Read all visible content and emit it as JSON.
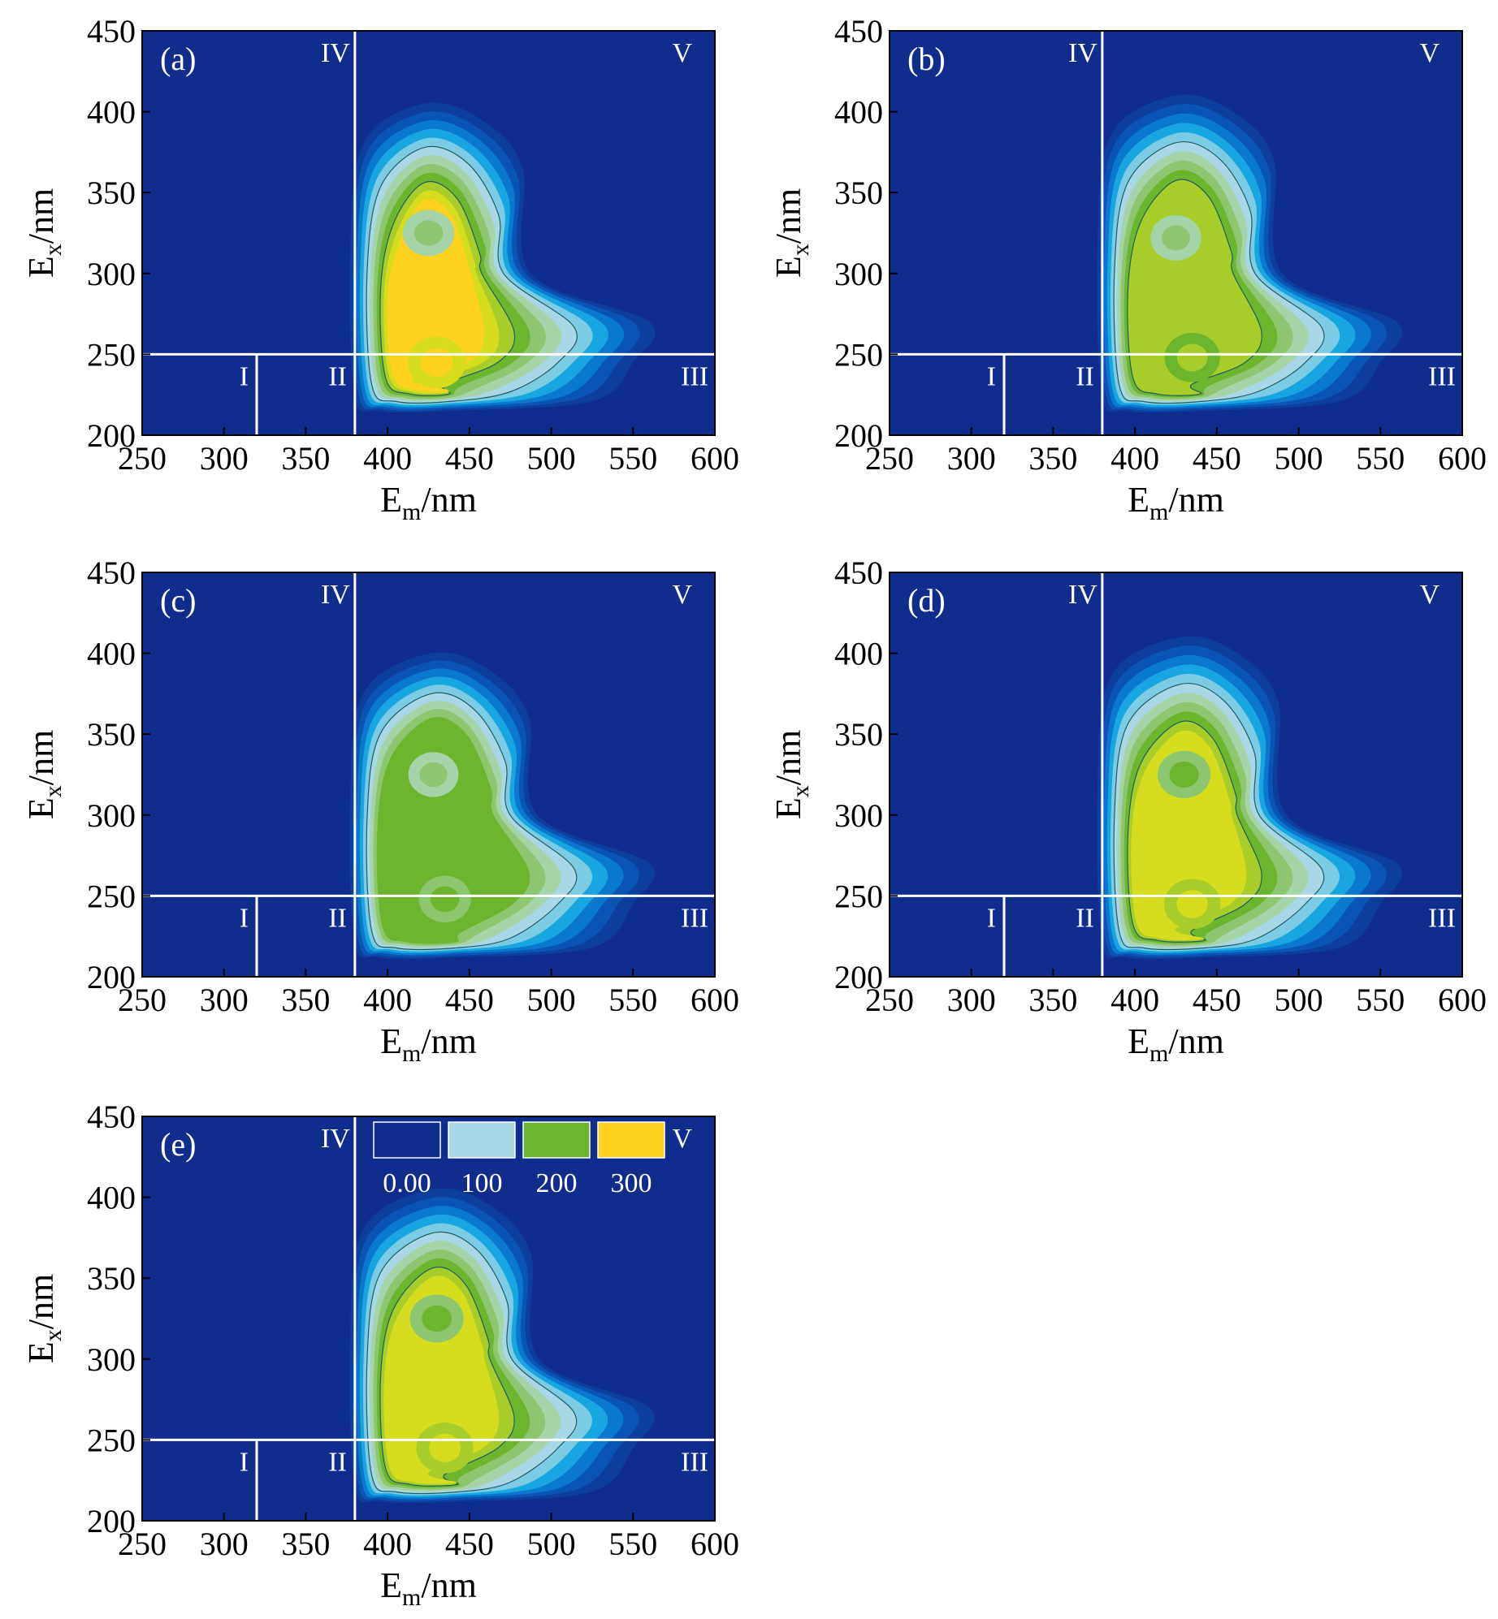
{
  "figure": {
    "panels": [
      {
        "label": "(a)"
      },
      {
        "label": "(b)"
      },
      {
        "label": "(c)"
      },
      {
        "label": "(d)"
      },
      {
        "label": "(e)"
      }
    ],
    "region_labels": [
      "I",
      "II",
      "III",
      "IV",
      "V"
    ],
    "colorbar": {
      "labels": [
        "0.00",
        "100",
        "200",
        "300"
      ],
      "colors": [
        "#0f2d8c",
        "#a8d8e6",
        "#6cb52f",
        "#ffd21f"
      ]
    }
  },
  "chart_data": [
    {
      "type": "heatmap",
      "panel": "(a)",
      "xlabel": "Em/nm",
      "ylabel": "Ex/nm",
      "xlim": [
        250,
        600
      ],
      "ylim": [
        200,
        450
      ],
      "xticks": [
        250,
        300,
        350,
        400,
        450,
        500,
        550,
        600
      ],
      "yticks": [
        200,
        250,
        300,
        350,
        400,
        450
      ],
      "region_boundaries": {
        "ex": 250,
        "em": [
          320,
          380
        ]
      },
      "peaks": [
        {
          "em": 425,
          "ex": 325,
          "intensity": 230
        },
        {
          "em": 430,
          "ex": 245,
          "intensity": 320
        }
      ],
      "extent": {
        "em": [
          380,
          560
        ],
        "ex": [
          215,
          405
        ]
      }
    },
    {
      "type": "heatmap",
      "panel": "(b)",
      "xlabel": "Em/nm",
      "ylabel": "Ex/nm",
      "xlim": [
        250,
        600
      ],
      "ylim": [
        200,
        450
      ],
      "xticks": [
        250,
        300,
        350,
        400,
        450,
        500,
        550,
        600
      ],
      "yticks": [
        200,
        250,
        300,
        350,
        400,
        450
      ],
      "region_boundaries": {
        "ex": 250,
        "em": [
          320,
          380
        ]
      },
      "peaks": [
        {
          "em": 425,
          "ex": 322,
          "intensity": 220
        },
        {
          "em": 435,
          "ex": 248,
          "intensity": 285
        }
      ],
      "extent": {
        "em": [
          380,
          560
        ],
        "ex": [
          215,
          410
        ]
      }
    },
    {
      "type": "heatmap",
      "panel": "(c)",
      "xlabel": "Em/nm",
      "ylabel": "Ex/nm",
      "xlim": [
        250,
        600
      ],
      "ylim": [
        200,
        450
      ],
      "xticks": [
        250,
        300,
        350,
        400,
        450,
        500,
        550,
        600
      ],
      "yticks": [
        200,
        250,
        300,
        350,
        400,
        450
      ],
      "region_boundaries": {
        "ex": 250,
        "em": [
          320,
          380
        ]
      },
      "peaks": [
        {
          "em": 428,
          "ex": 325,
          "intensity": 210
        },
        {
          "em": 435,
          "ex": 248,
          "intensity": 240
        }
      ],
      "extent": {
        "em": [
          380,
          560
        ],
        "ex": [
          212,
          400
        ]
      }
    },
    {
      "type": "heatmap",
      "panel": "(d)",
      "xlabel": "Em/nm",
      "ylabel": "Ex/nm",
      "xlim": [
        250,
        600
      ],
      "ylim": [
        200,
        450
      ],
      "xticks": [
        250,
        300,
        350,
        400,
        450,
        500,
        550,
        600
      ],
      "yticks": [
        200,
        250,
        300,
        350,
        400,
        450
      ],
      "region_boundaries": {
        "ex": 250,
        "em": [
          320,
          380
        ]
      },
      "peaks": [
        {
          "em": 430,
          "ex": 325,
          "intensity": 250
        },
        {
          "em": 435,
          "ex": 245,
          "intensity": 300
        }
      ],
      "extent": {
        "em": [
          380,
          560
        ],
        "ex": [
          212,
          410
        ]
      }
    },
    {
      "type": "heatmap",
      "panel": "(e)",
      "xlabel": "Em/nm",
      "ylabel": "Ex/nm",
      "xlim": [
        250,
        600
      ],
      "ylim": [
        200,
        450
      ],
      "xticks": [
        250,
        300,
        350,
        400,
        450,
        500,
        550,
        600
      ],
      "yticks": [
        200,
        250,
        300,
        350,
        400,
        450
      ],
      "region_boundaries": {
        "ex": 250,
        "em": [
          320,
          380
        ]
      },
      "peaks": [
        {
          "em": 430,
          "ex": 325,
          "intensity": 260
        },
        {
          "em": 435,
          "ex": 245,
          "intensity": 310
        }
      ],
      "extent": {
        "em": [
          380,
          560
        ],
        "ex": [
          212,
          405
        ]
      }
    }
  ]
}
